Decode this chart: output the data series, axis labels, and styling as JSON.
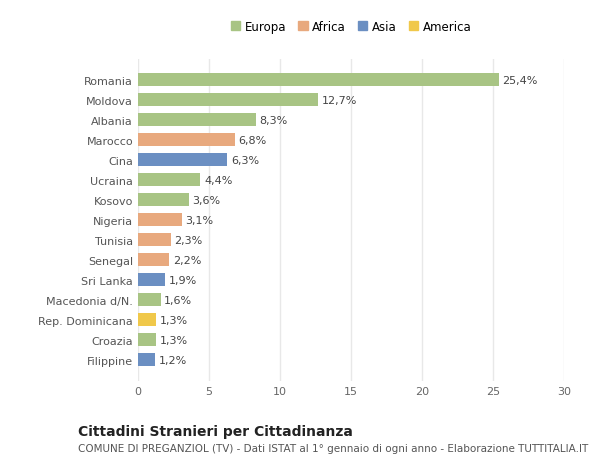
{
  "categories": [
    "Romania",
    "Moldova",
    "Albania",
    "Marocco",
    "Cina",
    "Ucraina",
    "Kosovo",
    "Nigeria",
    "Tunisia",
    "Senegal",
    "Sri Lanka",
    "Macedonia d/N.",
    "Rep. Dominicana",
    "Croazia",
    "Filippine"
  ],
  "values": [
    25.4,
    12.7,
    8.3,
    6.8,
    6.3,
    4.4,
    3.6,
    3.1,
    2.3,
    2.2,
    1.9,
    1.6,
    1.3,
    1.3,
    1.2
  ],
  "labels": [
    "25,4%",
    "12,7%",
    "8,3%",
    "6,8%",
    "6,3%",
    "4,4%",
    "3,6%",
    "3,1%",
    "2,3%",
    "2,2%",
    "1,9%",
    "1,6%",
    "1,3%",
    "1,3%",
    "1,2%"
  ],
  "colors": [
    "#a8c484",
    "#a8c484",
    "#a8c484",
    "#e8a97e",
    "#6b8fc2",
    "#a8c484",
    "#a8c484",
    "#e8a97e",
    "#e8a97e",
    "#e8a97e",
    "#6b8fc2",
    "#a8c484",
    "#f0c84a",
    "#a8c484",
    "#6b8fc2"
  ],
  "legend": {
    "Europa": "#a8c484",
    "Africa": "#e8a97e",
    "Asia": "#6b8fc2",
    "America": "#f0c84a"
  },
  "xlim": [
    0,
    30
  ],
  "xticks": [
    0,
    5,
    10,
    15,
    20,
    25,
    30
  ],
  "title": "Cittadini Stranieri per Cittadinanza",
  "subtitle": "COMUNE DI PREGANZIOL (TV) - Dati ISTAT al 1° gennaio di ogni anno - Elaborazione TUTTITALIA.IT",
  "bg_color": "#ffffff",
  "bar_height": 0.65,
  "grid_color": "#e8e8e8",
  "title_fontsize": 10,
  "subtitle_fontsize": 7.5,
  "label_fontsize": 8,
  "tick_fontsize": 8
}
